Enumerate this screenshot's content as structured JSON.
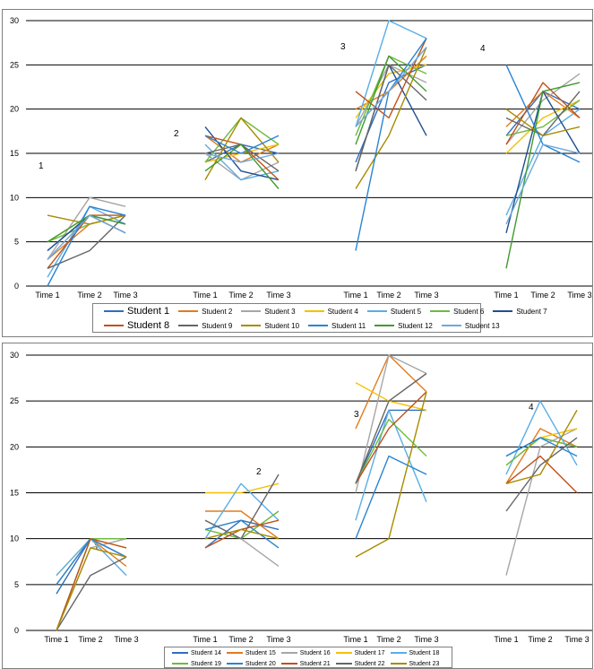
{
  "chart_data": [
    {
      "type": "line",
      "yticks": [
        0,
        5,
        10,
        15,
        20,
        25,
        30
      ],
      "ylim": [
        0,
        30
      ],
      "grid": true,
      "legend_position": "bottom",
      "groups": [
        {
          "label": "1",
          "x": [
            "Time 1",
            "Time 2",
            "Time 3"
          ]
        },
        {
          "label": "2",
          "x": [
            "Time 1",
            "Time 2",
            "Time 3"
          ]
        },
        {
          "label": "3",
          "x": [
            "Time 1",
            "Time 2",
            "Time 3"
          ]
        },
        {
          "label": "4",
          "x": [
            "Time 1",
            "Time 2",
            "Time 3"
          ]
        }
      ],
      "series": [
        {
          "name": "Student 1",
          "color": "#2e6fbe",
          "values": [
            [
              4,
              8,
              7
            ],
            [
              14,
              16,
              15
            ],
            [
              14,
              23,
              25
            ],
            [
              17,
              22,
              20
            ]
          ]
        },
        {
          "name": "Student 2",
          "color": "#e07c1f",
          "values": [
            [
              3,
              7,
              8
            ],
            [
              17,
              14,
              16
            ],
            [
              20,
              22,
              26
            ],
            [
              18,
              22,
              19
            ]
          ]
        },
        {
          "name": "Student 3",
          "color": "#a6a6a6",
          "values": [
            [
              3,
              10,
              9
            ],
            [
              15,
              12,
              14
            ],
            [
              18,
              25,
              23
            ],
            [
              16,
              21,
              24
            ]
          ]
        },
        {
          "name": "Student 4",
          "color": "#f5c000",
          "values": [
            [
              5,
              8,
              6
            ],
            [
              14,
              15,
              16
            ],
            [
              19,
              24,
              25
            ],
            [
              15,
              19,
              21
            ]
          ]
        },
        {
          "name": "Student 5",
          "color": "#5aaee6",
          "values": [
            [
              1,
              9,
              7
            ],
            [
              16,
              12,
              13
            ],
            [
              18,
              30,
              28
            ],
            [
              8,
              17,
              20
            ]
          ]
        },
        {
          "name": "Student 6",
          "color": "#6dbb3e",
          "values": [
            [
              5,
              7,
              8
            ],
            [
              14,
              19,
              16
            ],
            [
              17,
              26,
              24
            ],
            [
              17,
              18,
              21
            ]
          ]
        },
        {
          "name": "Student 7",
          "color": "#1f4f8f",
          "values": [
            [
              4,
              8,
              6
            ],
            [
              18,
              13,
              12
            ],
            [
              13,
              25,
              17
            ],
            [
              6,
              22,
              15
            ]
          ]
        },
        {
          "name": "Student 8",
          "color": "#c0511a",
          "values": [
            [
              2,
              8,
              8
            ],
            [
              17,
              16,
              12
            ],
            [
              22,
              19,
              28
            ],
            [
              16,
              23,
              19
            ]
          ]
        },
        {
          "name": "Student 9",
          "color": "#666666",
          "values": [
            [
              2,
              4,
              8
            ],
            [
              15,
              16,
              13
            ],
            [
              13,
              25,
              21
            ],
            [
              19,
              17,
              22
            ]
          ]
        },
        {
          "name": "Student 10",
          "color": "#a88b00",
          "values": [
            [
              8,
              7,
              8
            ],
            [
              12,
              19,
              14
            ],
            [
              11,
              17,
              27
            ],
            [
              20,
              17,
              18
            ]
          ]
        },
        {
          "name": "Student 11",
          "color": "#2a84d2",
          "values": [
            [
              0,
              9,
              8
            ],
            [
              17,
              15,
              17
            ],
            [
              4,
              22,
              28
            ],
            [
              25,
              16,
              14
            ]
          ]
        },
        {
          "name": "Student 12",
          "color": "#3f9b2e",
          "values": [
            [
              5,
              8,
              7
            ],
            [
              13,
              16,
              11
            ],
            [
              16,
              26,
              22
            ],
            [
              2,
              22,
              23
            ]
          ]
        },
        {
          "name": "Student 13",
          "color": "#6fa8dc",
          "values": [
            [
              3,
              8,
              6
            ],
            [
              15,
              14,
              15
            ],
            [
              18,
              22,
              27
            ],
            [
              7,
              16,
              15
            ]
          ]
        }
      ]
    },
    {
      "type": "line",
      "yticks": [
        0,
        5,
        10,
        15,
        20,
        25,
        30
      ],
      "ylim": [
        0,
        30
      ],
      "grid": true,
      "legend_position": "bottom",
      "groups": [
        {
          "label": "1",
          "x": [
            "Time 1",
            "Time 2",
            "Time 3"
          ]
        },
        {
          "label": "2",
          "x": [
            "Time 1",
            "Time 2",
            "Time 3"
          ]
        },
        {
          "label": "3",
          "x": [
            "Time 1",
            "Time 2",
            "Time 3"
          ]
        },
        {
          "label": "4",
          "x": [
            "Time 1",
            "Time 2",
            "Time 3"
          ]
        }
      ],
      "series": [
        {
          "name": "Student 14",
          "color": "#2e6fbe",
          "values": [
            [
              4,
              10,
              8
            ],
            [
              9,
              12,
              11
            ],
            [
              16,
              24,
              24
            ],
            [
              19,
              21,
              20
            ]
          ]
        },
        {
          "name": "Student 15",
          "color": "#e07c1f",
          "values": [
            [
              5,
              10,
              7
            ],
            [
              13,
              13,
              10
            ],
            [
              22,
              30,
              26
            ],
            [
              16,
              22,
              20
            ]
          ]
        },
        {
          "name": "Student 16",
          "color": "#a6a6a6",
          "values": [
            [
              0,
              9,
              10
            ],
            [
              12,
              10,
              7
            ],
            [
              15,
              30,
              28
            ],
            [
              6,
              20,
              22
            ]
          ]
        },
        {
          "name": "Student 17",
          "color": "#f5c000",
          "values": [
            [
              6,
              10,
              9
            ],
            [
              15,
              15,
              16
            ],
            [
              27,
              25,
              24
            ],
            [
              18,
              21,
              22
            ]
          ]
        },
        {
          "name": "Student 18",
          "color": "#5aaee6",
          "values": [
            [
              6,
              10,
              6
            ],
            [
              10,
              16,
              12
            ],
            [
              12,
              24,
              14
            ],
            [
              17,
              25,
              18
            ]
          ]
        },
        {
          "name": "Student 19",
          "color": "#6dbb3e",
          "values": [
            [
              0,
              10,
              10
            ],
            [
              11,
              10,
              13
            ],
            [
              16,
              23,
              19
            ],
            [
              18,
              21,
              20
            ]
          ]
        },
        {
          "name": "Student 20",
          "color": "#2a84d2",
          "values": [
            [
              5,
              10,
              8
            ],
            [
              11,
              12,
              9
            ],
            [
              10,
              19,
              17
            ],
            [
              19,
              21,
              19
            ]
          ]
        },
        {
          "name": "Student 21",
          "color": "#c0511a",
          "values": [
            [
              0,
              10,
              9
            ],
            [
              9,
              11,
              12
            ],
            [
              16,
              22,
              26
            ],
            [
              16,
              19,
              15
            ]
          ]
        },
        {
          "name": "Student 22",
          "color": "#666666",
          "values": [
            [
              0,
              6,
              8
            ],
            [
              12,
              10,
              17
            ],
            [
              16,
              25,
              28
            ],
            [
              13,
              18,
              21
            ]
          ]
        },
        {
          "name": "Student 23",
          "color": "#a88b00",
          "values": [
            [
              0,
              9,
              8
            ],
            [
              10,
              11,
              10
            ],
            [
              8,
              10,
              26
            ],
            [
              16,
              17,
              24
            ]
          ]
        }
      ]
    }
  ]
}
